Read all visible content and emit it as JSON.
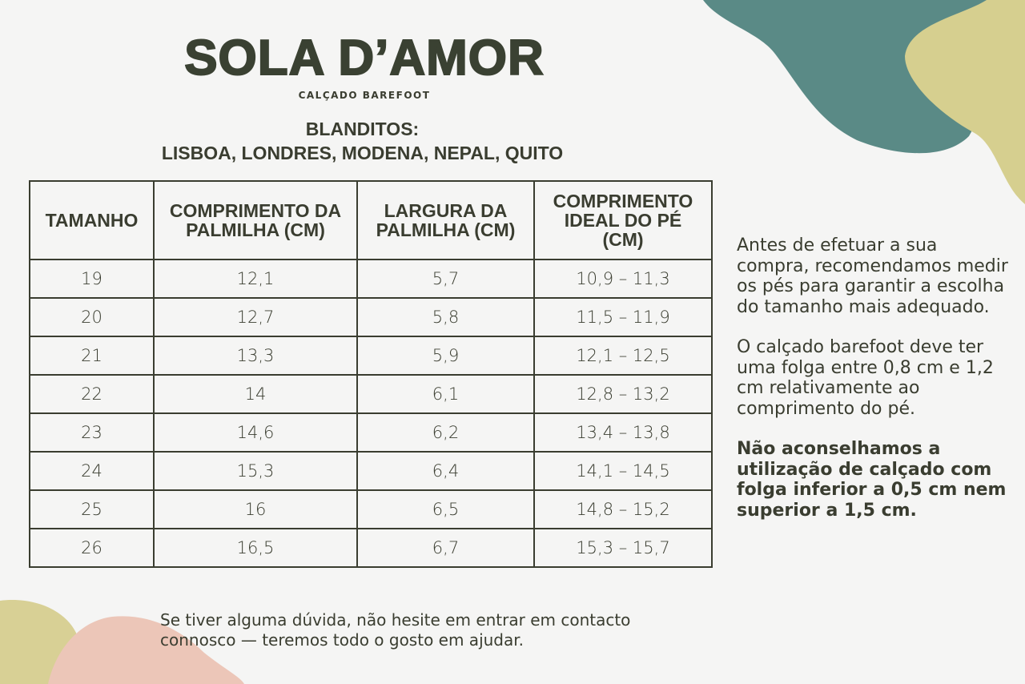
{
  "brand": {
    "name": "SOLA D’AMOR",
    "tagline": "CALÇADO BAREFOOT"
  },
  "heading": {
    "line1": "BLANDITOS:",
    "line2": "LISBOA, LONDRES, MODENA, NEPAL, QUITO"
  },
  "table": {
    "headers": [
      "TAMANHO",
      "COMPRIMENTO DA PALMILHA (CM)",
      "LARGURA DA PALMILHA (CM)",
      "COMPRIMENTO IDEAL DO PÉ (CM)"
    ],
    "rows": [
      [
        "19",
        "12,1",
        "5,7",
        "10,9 – 11,3"
      ],
      [
        "20",
        "12,7",
        "5,8",
        "11,5 – 11,9"
      ],
      [
        "21",
        "13,3",
        "5,9",
        "12,1 – 12,5"
      ],
      [
        "22",
        "14",
        "6,1",
        "12,8 – 13,2"
      ],
      [
        "23",
        "14,6",
        "6,2",
        "13,4 – 13,8"
      ],
      [
        "24",
        "15,3",
        "6,4",
        "14,1 – 14,5"
      ],
      [
        "25",
        "16",
        "6,5",
        "14,8 – 15,2"
      ],
      [
        "26",
        "16,5",
        "6,7",
        "15,3 – 15,7"
      ]
    ]
  },
  "notes": [
    "Antes de efetuar a sua compra, recomendamos medir os pés para garantir a escolha do tamanho mais adequado.",
    "O calçado barefoot deve ter uma folga entre 0,8 cm e 1,2 cm relativamente ao comprimento do pé.",
    "Não aconselhamos a utilização de calçado com folga inferior a 0,5 cm nem superior a 1,5 cm."
  ],
  "footer": "Se tiver alguma dúvida, não hesite em entrar em contacto connosco — teremos todo o gosto em ajudar."
}
